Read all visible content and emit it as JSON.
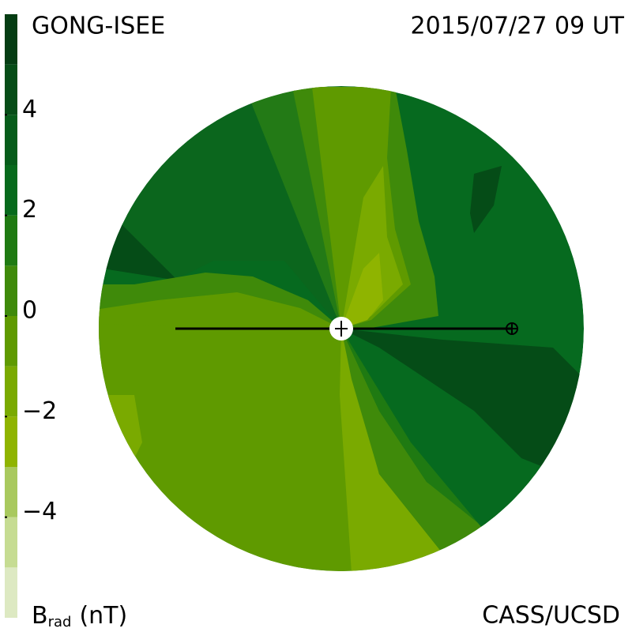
{
  "chart_data": {
    "type": "contour",
    "title": "GONG-ISEE",
    "date": "2015/07/27 09 UT",
    "credit": "CASS/UCSD",
    "colorbar_label": {
      "symbol": "B",
      "subscript": "rad",
      "unit": "(nT)"
    },
    "clim": [
      -6,
      6
    ],
    "cticks": [
      {
        "value": 4,
        "label": "4"
      },
      {
        "value": 2,
        "label": "2"
      },
      {
        "value": 0,
        "label": "0"
      },
      {
        "value": -2,
        "label": "−2"
      },
      {
        "value": -4,
        "label": "−4"
      }
    ],
    "levels": [
      -6,
      -5,
      -4,
      -3,
      -2,
      -1,
      0,
      1,
      2,
      3,
      4,
      5,
      6
    ],
    "colors": [
      "#dde9c2",
      "#c6dc92",
      "#a9c95e",
      "#8fb400",
      "#7aaa00",
      "#5f9a00",
      "#3f8a0a",
      "#1f7a12",
      "#076a1c",
      "#065c1a",
      "#064d17",
      "#053d13"
    ]
  }
}
